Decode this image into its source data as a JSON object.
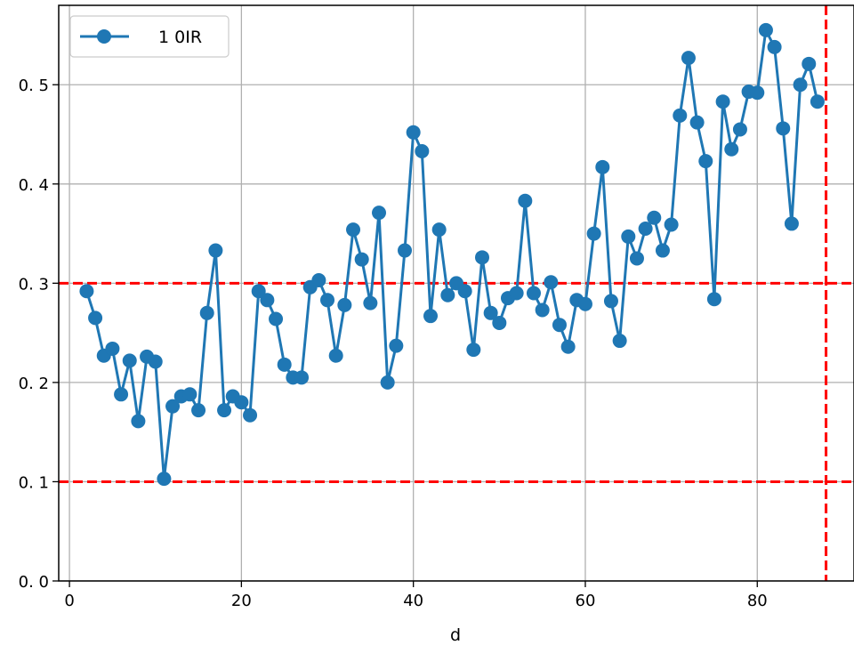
{
  "chart_data": {
    "type": "line",
    "title": "",
    "xlabel": "d",
    "ylabel": "",
    "xlim": [
      -1.25,
      91.25
    ],
    "ylim": [
      0.0,
      0.58
    ],
    "x_ticks": [
      0,
      20,
      40,
      60,
      80
    ],
    "x_tick_labels": [
      "0",
      "20",
      "40",
      "60",
      "80"
    ],
    "y_ticks": [
      0.0,
      0.1,
      0.2,
      0.3,
      0.4,
      0.5
    ],
    "y_tick_labels": [
      "0. 0",
      "0. 1",
      "0. 2",
      "0. 3",
      "0. 4",
      "0. 5"
    ],
    "grid": true,
    "legend_position": "top-left",
    "series": [
      {
        "name": "1 0IR",
        "color": "#1f77b4",
        "marker": "circle",
        "x": [
          2,
          3,
          4,
          5,
          6,
          7,
          8,
          9,
          10,
          11,
          12,
          13,
          14,
          15,
          16,
          17,
          18,
          19,
          20,
          21,
          22,
          23,
          24,
          25,
          26,
          27,
          28,
          29,
          30,
          31,
          32,
          33,
          34,
          35,
          36,
          37,
          38,
          39,
          40,
          41,
          42,
          43,
          44,
          45,
          46,
          47,
          48,
          49,
          50,
          51,
          52,
          53,
          54,
          55,
          56,
          57,
          58,
          59,
          60,
          61,
          62,
          63,
          64,
          65,
          66,
          67,
          68,
          69,
          70,
          71,
          72,
          73,
          74,
          75,
          76,
          77,
          78,
          79,
          80,
          81,
          82,
          83,
          84,
          85,
          86,
          87
        ],
        "y": [
          0.292,
          0.265,
          0.227,
          0.234,
          0.188,
          0.222,
          0.161,
          0.226,
          0.221,
          0.103,
          0.176,
          0.186,
          0.188,
          0.172,
          0.27,
          0.333,
          0.172,
          0.186,
          0.18,
          0.167,
          0.292,
          0.283,
          0.264,
          0.218,
          0.205,
          0.205,
          0.296,
          0.303,
          0.283,
          0.227,
          0.278,
          0.354,
          0.324,
          0.28,
          0.371,
          0.2,
          0.237,
          0.333,
          0.452,
          0.433,
          0.267,
          0.354,
          0.288,
          0.3,
          0.292,
          0.233,
          0.326,
          0.27,
          0.26,
          0.285,
          0.29,
          0.383,
          0.29,
          0.273,
          0.301,
          0.258,
          0.236,
          0.283,
          0.279,
          0.35,
          0.417,
          0.282,
          0.242,
          0.347,
          0.325,
          0.355,
          0.366,
          0.333,
          0.359,
          0.469,
          0.527,
          0.462,
          0.423,
          0.284,
          0.483,
          0.435,
          0.455,
          0.493,
          0.492,
          0.555,
          0.538,
          0.456,
          0.36,
          0.5,
          0.521,
          0.483
        ]
      }
    ],
    "reference_lines": [
      {
        "orientation": "horizontal",
        "value": 0.3,
        "color": "#ff0000",
        "style": "dashed"
      },
      {
        "orientation": "horizontal",
        "value": 0.1,
        "color": "#ff0000",
        "style": "dashed"
      },
      {
        "orientation": "vertical",
        "value": 88,
        "color": "#ff0000",
        "style": "dashed"
      }
    ]
  }
}
